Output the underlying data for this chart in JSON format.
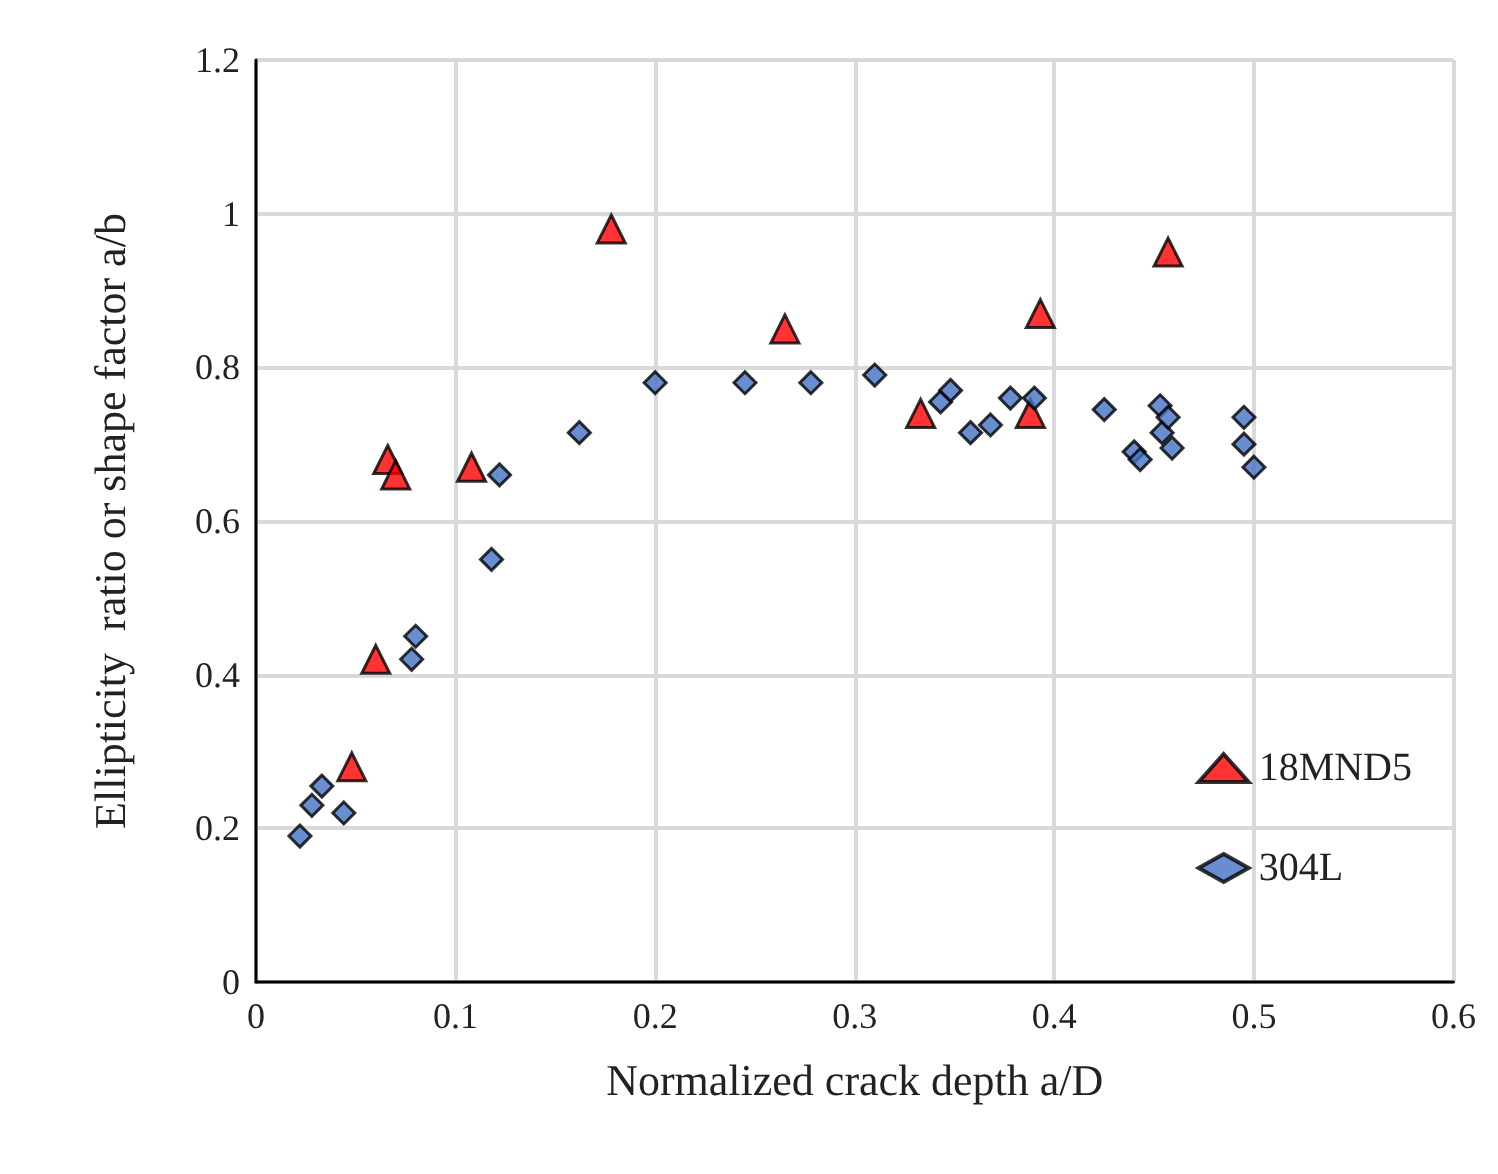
{
  "chart_data": {
    "type": "scatter",
    "xlabel": "Normalized crack depth a/D",
    "ylabel": "Ellipticity  ratio or shape factor a/b",
    "xlim": [
      0,
      0.6
    ],
    "xticks": [
      0,
      0.1,
      0.2,
      0.3,
      0.4,
      0.5,
      0.6
    ],
    "ylim": [
      0,
      1.2
    ],
    "yticks": [
      0,
      0.2,
      0.4,
      0.6,
      0.8,
      1,
      1.2
    ],
    "grid": true,
    "legend": "bottom right",
    "series": [
      {
        "name": "18MND5",
        "color": "#ff0000",
        "marker": "triangle",
        "x": [
          0.048,
          0.06,
          0.066,
          0.07,
          0.108,
          0.178,
          0.265,
          0.333,
          0.388,
          0.393,
          0.457
        ],
        "values": [
          0.28,
          0.42,
          0.68,
          0.66,
          0.67,
          0.98,
          0.85,
          0.74,
          0.74,
          0.87,
          0.95
        ]
      },
      {
        "name": "304L",
        "color": "#4472c4",
        "marker": "diamond",
        "x": [
          0.022,
          0.028,
          0.033,
          0.044,
          0.078,
          0.08,
          0.118,
          0.122,
          0.162,
          0.2,
          0.245,
          0.278,
          0.31,
          0.343,
          0.348,
          0.358,
          0.368,
          0.378,
          0.39,
          0.425,
          0.44,
          0.443,
          0.453,
          0.454,
          0.457,
          0.459,
          0.495,
          0.495,
          0.5
        ],
        "values": [
          0.19,
          0.23,
          0.255,
          0.22,
          0.42,
          0.45,
          0.55,
          0.66,
          0.715,
          0.78,
          0.78,
          0.78,
          0.79,
          0.755,
          0.77,
          0.715,
          0.725,
          0.76,
          0.76,
          0.745,
          0.69,
          0.68,
          0.75,
          0.715,
          0.735,
          0.695,
          0.735,
          0.7,
          0.67
        ]
      }
    ]
  }
}
